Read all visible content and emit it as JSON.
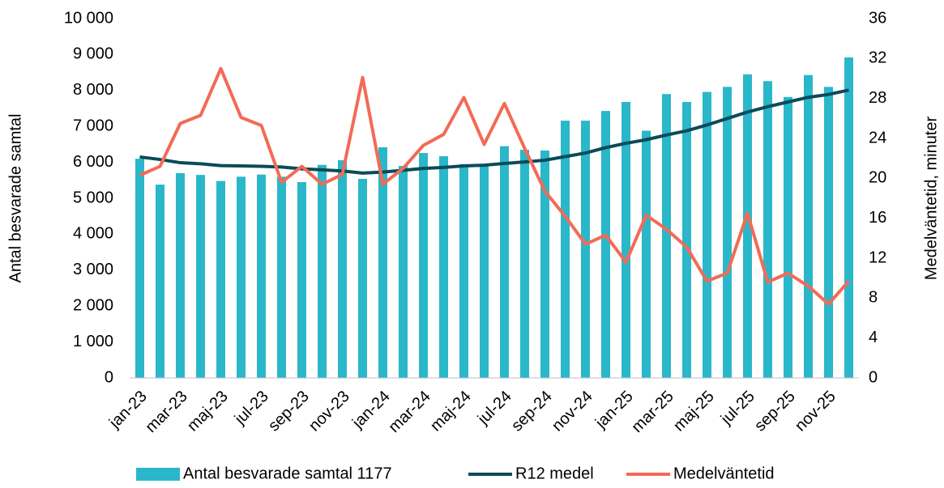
{
  "chart_data": {
    "type": "bar",
    "y_label": "Antal besvarade samtal",
    "y2_label": "Medelväntetid, minuter",
    "categories": [
      "jan-23",
      null,
      "mar-23",
      null,
      "maj-23",
      null,
      "jul-23",
      null,
      "sep-23",
      null,
      "nov-23",
      null,
      "jan-24",
      null,
      "mar-24",
      null,
      "maj-24",
      null,
      "jul-24",
      null,
      "sep-24",
      null,
      "nov-24",
      null,
      "jan-25",
      null,
      "mar-25",
      null,
      "maj-25",
      null,
      "jul-25",
      null,
      "sep-25",
      null,
      "nov-25",
      null
    ],
    "series": [
      {
        "name": "Antal besvarade samtal 1177",
        "type": "bar",
        "color": "#2ab7c9",
        "values": [
          6100,
          5380,
          5700,
          5650,
          5480,
          5600,
          5660,
          5600,
          5450,
          5930,
          6060,
          5540,
          6420,
          5900,
          6260,
          6170,
          5950,
          5950,
          6450,
          6350,
          6330,
          7160,
          7160,
          7430,
          7680,
          6880,
          7900,
          7680,
          7960,
          8100,
          8450,
          8260,
          7820,
          8430,
          8100,
          8920
        ]
      },
      {
        "name": "R12 medel",
        "type": "line",
        "color": "#0b4a5a",
        "values": [
          6150,
          6080,
          5990,
          5960,
          5910,
          5900,
          5890,
          5870,
          5820,
          5790,
          5760,
          5700,
          5730,
          5780,
          5830,
          5860,
          5900,
          5920,
          5970,
          6010,
          6060,
          6160,
          6260,
          6410,
          6530,
          6630,
          6760,
          6880,
          7040,
          7220,
          7400,
          7550,
          7680,
          7810,
          7890,
          8010
        ]
      },
      {
        "name": "Medelväntetid",
        "type": "line",
        "axis": "y2",
        "color": "#f26b55",
        "values": [
          20.3,
          21.2,
          25.5,
          26.3,
          31.0,
          26.1,
          25.3,
          19.6,
          21.2,
          19.4,
          20.4,
          30.1,
          19.4,
          21.0,
          23.3,
          24.4,
          28.1,
          23.4,
          27.5,
          23.0,
          18.7,
          16.2,
          13.4,
          14.3,
          11.6,
          16.3,
          14.9,
          13.1,
          9.7,
          10.5,
          16.5,
          9.6,
          10.5,
          9.2,
          7.4,
          9.7
        ]
      }
    ],
    "ylim": [
      0,
      10000
    ],
    "yticks": [
      0,
      {
        "value": 1000,
        "label": "1 000"
      },
      {
        "value": 2000,
        "label": "2 000"
      },
      {
        "value": 3000,
        "label": "3 000"
      },
      {
        "value": 4000,
        "label": "4 000"
      },
      {
        "value": 5000,
        "label": "5 000"
      },
      {
        "value": 6000,
        "label": "6 000"
      },
      {
        "value": 7000,
        "label": "7 000"
      },
      {
        "value": 8000,
        "label": "8 000"
      },
      {
        "value": 9000,
        "label": "9 000"
      },
      {
        "value": 10000,
        "label": "10 000"
      }
    ],
    "y2lim": [
      0,
      36
    ],
    "y2ticks": [
      0,
      4,
      8,
      12,
      16,
      20,
      24,
      28,
      32,
      36
    ],
    "grid": false,
    "legend": "bottom"
  }
}
